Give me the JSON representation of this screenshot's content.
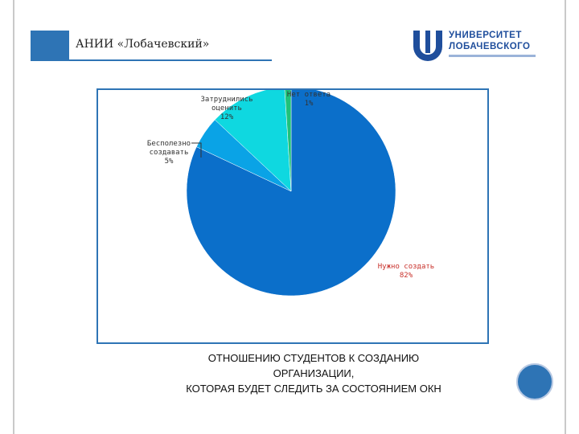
{
  "header": {
    "title": "АНИИ «Лобачевский»"
  },
  "logo": {
    "line1": "УНИВЕРСИТЕТ",
    "line2": "ЛОБАЧЕВСКОГО"
  },
  "caption": {
    "line1": "ОТНОШЕНИЮ СТУДЕНТОВ К СОЗДАНИЮ",
    "line2": "ОРГАНИЗАЦИИ,",
    "line3": "КОТОРАЯ БУДЕТ СЛЕДИТЬ ЗА СОСТОЯНИЕМ ОКН"
  },
  "chart_data": {
    "type": "pie",
    "title": "",
    "slices": [
      {
        "label_lines": [
          "Нужно создать",
          "82%"
        ],
        "value": 82,
        "color": "#0b6fca"
      },
      {
        "label_lines": [
          "Бесполезно",
          "создавать",
          "5%"
        ],
        "value": 5,
        "color": "#0aa3e6"
      },
      {
        "label_lines": [
          "Затруднились",
          "оценить",
          "12%"
        ],
        "value": 12,
        "color": "#0fd8e0"
      },
      {
        "label_lines": [
          "Нет ответа",
          "1%"
        ],
        "value": 1,
        "color": "#1fc27a"
      }
    ],
    "legend": "none"
  }
}
